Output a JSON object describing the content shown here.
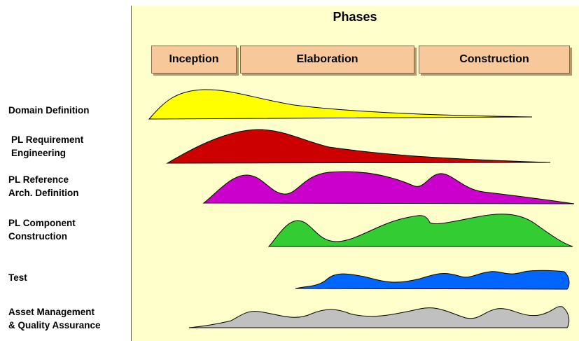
{
  "title": "Phases",
  "phases": [
    "Inception",
    "Elaboration",
    "Construction"
  ],
  "activities": [
    {
      "line1": "Domain Definition",
      "line2": "",
      "color": "#ffff00"
    },
    {
      "line1": "PL Requirement",
      "line2": "Engineering",
      "color": "#cc0000"
    },
    {
      "line1": "PL Reference",
      "line2": "Arch. Definition",
      "color": "#cc00cc"
    },
    {
      "line1": "PL Component",
      "line2": "Construction",
      "color": "#33cc33"
    },
    {
      "line1": "Test",
      "line2": "",
      "color": "#0066ff"
    },
    {
      "line1": "Asset Management",
      "line2": "& Quality Assurance",
      "color": "#c0c0c0"
    }
  ]
}
